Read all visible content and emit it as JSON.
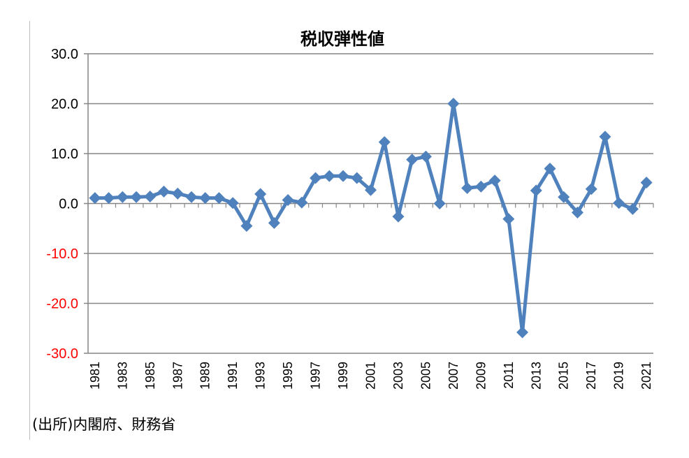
{
  "chart_data": {
    "type": "line",
    "title": "税収弾性値",
    "xlabel": "",
    "ylabel": "",
    "ylim": [
      -30,
      30
    ],
    "yticks": [
      30,
      20,
      10,
      0,
      -10,
      -20,
      -30
    ],
    "ytick_labels": [
      "30.0",
      "20.0",
      "10.0",
      "0.0",
      "-10.0",
      "-20.0",
      "-30.0"
    ],
    "negative_tick_color": "#ff0000",
    "positive_tick_color": "#000000",
    "series_color": "#4f81bd",
    "x": [
      1981,
      1982,
      1983,
      1984,
      1985,
      1986,
      1987,
      1988,
      1989,
      1990,
      1991,
      1992,
      1993,
      1994,
      1995,
      1996,
      1997,
      1998,
      1999,
      2000,
      2001,
      2002,
      2003,
      2004,
      2005,
      2006,
      2007,
      2008,
      2009,
      2010,
      2011,
      2012,
      2013,
      2014,
      2015,
      2016,
      2017,
      2018,
      2019,
      2020,
      2021
    ],
    "x_tick_labels": [
      "1981",
      "1983",
      "1985",
      "1987",
      "1989",
      "1991",
      "1993",
      "1995",
      "1997",
      "1999",
      "2001",
      "2003",
      "2005",
      "2007",
      "2009",
      "2011",
      "2013",
      "2015",
      "2017",
      "2019",
      "2021"
    ],
    "series": [
      {
        "name": "税収弾性値",
        "values": [
          1.1,
          1.1,
          1.3,
          1.3,
          1.4,
          2.4,
          2.0,
          1.3,
          1.1,
          1.1,
          0.1,
          -4.5,
          1.9,
          -3.9,
          0.7,
          0.2,
          5.1,
          5.5,
          5.5,
          5.1,
          2.7,
          12.3,
          -2.6,
          8.8,
          9.4,
          0.0,
          20.0,
          3.1,
          3.4,
          4.6,
          -3.1,
          -25.8,
          2.6,
          7.0,
          1.3,
          -1.8,
          2.9,
          13.4,
          0.1,
          -1.1,
          4.2
        ]
      }
    ]
  },
  "source_note": "(出所)内閣府、財務省"
}
